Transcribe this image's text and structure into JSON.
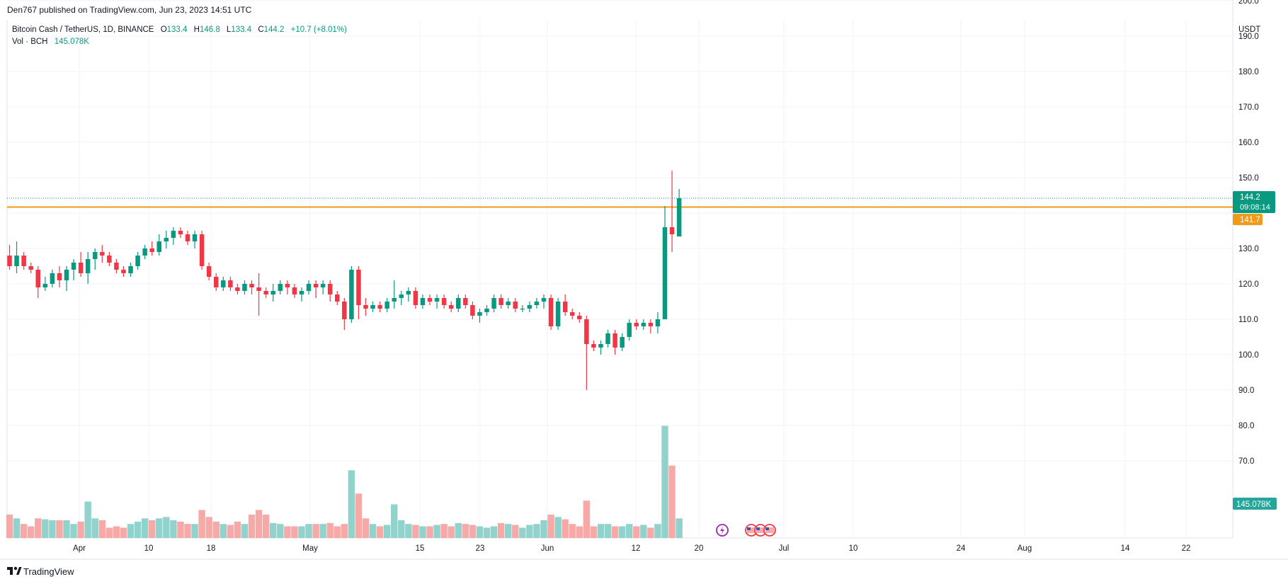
{
  "header": {
    "published": "Den767 published on TradingView.com, Jun 23, 2023 14:51 UTC"
  },
  "legend": {
    "symbol": "Bitcoin Cash / TetherUS, 1D, BINANCE",
    "open_label": "O",
    "open": "133.4",
    "high_label": "H",
    "high": "146.8",
    "low_label": "L",
    "low": "133.4",
    "close_label": "C",
    "close": "144.2",
    "change": "+10.7 (+8.01%)",
    "vol_label": "Vol · BCH",
    "vol_value": "145.078K"
  },
  "axis": {
    "currency": "USDT",
    "price_ticks": [
      "200.0",
      "190.0",
      "180.0",
      "170.0",
      "160.0",
      "150.0",
      "130.0",
      "120.0",
      "110.0",
      "100.0",
      "90.0",
      "80.0",
      "70.0"
    ],
    "price_tick_values": [
      200,
      190,
      180,
      170,
      160,
      150,
      130,
      120,
      110,
      100,
      90,
      80,
      70
    ],
    "date_ticks": [
      "Apr",
      "10",
      "18",
      "May",
      "15",
      "23",
      "Jun",
      "12",
      "20",
      "Jul",
      "10",
      "24",
      "Aug",
      "14",
      "22"
    ]
  },
  "badges": {
    "last_price": "144.2",
    "countdown": "09:08:14",
    "level_price": "141.7",
    "volume": "145.078K"
  },
  "footer": {
    "brand": "TradingView"
  },
  "colors": {
    "up": "#089981",
    "down": "#f23645",
    "vol_up": "#92d2cc",
    "vol_down": "#f7a9a7",
    "level": "#f09a1a",
    "grid": "#f0f3fa",
    "text": "#131722"
  },
  "chart_data": {
    "type": "candlestick",
    "title": "Bitcoin Cash / TetherUS, 1D, BINANCE",
    "ylabel": "USDT",
    "ylim": [
      65,
      210
    ],
    "horizontal_line": 141.7,
    "first_date": "2023-03-21",
    "candles": [
      [
        128,
        131,
        124,
        125,
        0.5
      ],
      [
        125,
        132,
        123,
        128,
        0.42
      ],
      [
        128,
        129,
        124,
        125,
        0.3
      ],
      [
        125,
        126,
        123,
        124,
        0.25
      ],
      [
        124,
        125,
        116,
        119,
        0.42
      ],
      [
        119,
        122,
        118,
        120,
        0.4
      ],
      [
        120,
        124,
        119,
        123,
        0.38
      ],
      [
        123,
        125,
        119,
        121,
        0.38
      ],
      [
        121,
        125,
        118,
        124,
        0.38
      ],
      [
        124,
        127,
        121,
        126,
        0.3
      ],
      [
        126,
        129,
        122,
        123,
        0.35
      ],
      [
        123,
        129,
        120,
        127,
        0.78
      ],
      [
        127,
        130,
        124,
        129,
        0.42
      ],
      [
        129,
        131,
        126,
        128,
        0.38
      ],
      [
        128,
        129,
        125,
        126,
        0.22
      ],
      [
        126,
        127,
        123,
        124,
        0.25
      ],
      [
        124,
        125,
        122,
        123,
        0.22
      ],
      [
        123,
        126,
        122,
        125,
        0.3
      ],
      [
        125,
        129,
        124,
        128,
        0.35
      ],
      [
        128,
        131,
        127,
        130,
        0.42
      ],
      [
        130,
        132,
        128,
        129,
        0.38
      ],
      [
        129,
        134,
        128,
        132,
        0.42
      ],
      [
        132,
        135,
        130,
        133,
        0.45
      ],
      [
        133,
        136,
        131,
        135,
        0.38
      ],
      [
        135,
        136,
        133,
        134,
        0.35
      ],
      [
        134,
        135,
        131,
        132,
        0.3
      ],
      [
        132,
        135,
        130,
        134,
        0.3
      ],
      [
        134,
        135,
        124,
        125,
        0.6
      ],
      [
        125,
        126,
        121,
        122,
        0.45
      ],
      [
        122,
        123,
        118,
        119,
        0.35
      ],
      [
        119,
        122,
        118,
        121,
        0.3
      ],
      [
        121,
        122,
        118,
        119,
        0.28
      ],
      [
        119,
        120,
        117,
        118,
        0.35
      ],
      [
        118,
        121,
        117,
        120,
        0.3
      ],
      [
        120,
        121,
        117,
        119,
        0.5
      ],
      [
        119,
        123,
        111,
        118,
        0.6
      ],
      [
        118,
        119,
        116,
        117,
        0.5
      ],
      [
        117,
        120,
        115,
        118,
        0.32
      ],
      [
        118,
        121,
        117,
        120,
        0.3
      ],
      [
        120,
        121,
        117,
        119,
        0.25
      ],
      [
        119,
        120,
        116,
        117,
        0.25
      ],
      [
        117,
        119,
        115,
        118,
        0.25
      ],
      [
        118,
        121,
        117,
        120,
        0.3
      ],
      [
        120,
        121,
        116,
        119,
        0.3
      ],
      [
        119,
        121,
        117,
        120,
        0.3
      ],
      [
        120,
        121,
        115,
        117,
        0.32
      ],
      [
        117,
        118,
        114,
        115,
        0.25
      ],
      [
        115,
        116,
        107,
        110,
        0.3
      ],
      [
        110,
        125,
        109,
        124,
        1.45
      ],
      [
        124,
        125,
        110,
        114,
        0.95
      ],
      [
        114,
        116,
        111,
        113,
        0.42
      ],
      [
        113,
        115,
        112,
        114,
        0.3
      ],
      [
        114,
        115,
        112,
        113,
        0.25
      ],
      [
        113,
        116,
        112,
        115,
        0.28
      ],
      [
        115,
        121,
        113,
        116,
        0.72
      ],
      [
        116,
        118,
        114,
        117,
        0.38
      ],
      [
        117,
        119,
        115,
        118,
        0.3
      ],
      [
        118,
        119,
        113,
        114,
        0.28
      ],
      [
        114,
        117,
        113,
        116,
        0.25
      ],
      [
        116,
        117,
        114,
        115,
        0.25
      ],
      [
        115,
        117,
        113,
        116,
        0.28
      ],
      [
        116,
        117,
        113,
        114,
        0.3
      ],
      [
        114,
        115,
        112,
        113,
        0.25
      ],
      [
        113,
        117,
        112,
        116,
        0.32
      ],
      [
        116,
        117,
        113,
        114,
        0.3
      ],
      [
        114,
        115,
        110,
        111,
        0.28
      ],
      [
        111,
        113,
        109,
        112,
        0.25
      ],
      [
        112,
        114,
        111,
        113,
        0.22
      ],
      [
        113,
        117,
        112,
        116,
        0.25
      ],
      [
        116,
        117,
        113,
        114,
        0.32
      ],
      [
        114,
        116,
        113,
        115,
        0.3
      ],
      [
        115,
        116,
        112,
        113,
        0.28
      ],
      [
        113,
        114,
        112,
        113,
        0.22
      ],
      [
        113,
        115,
        112,
        114,
        0.28
      ],
      [
        114,
        116,
        113,
        115,
        0.3
      ],
      [
        115,
        117,
        113,
        116,
        0.38
      ],
      [
        116,
        117,
        107,
        108,
        0.5
      ],
      [
        108,
        116,
        107,
        115,
        0.45
      ],
      [
        115,
        117,
        111,
        112,
        0.4
      ],
      [
        112,
        113,
        110,
        111,
        0.3
      ],
      [
        111,
        112,
        109,
        110,
        0.25
      ],
      [
        110,
        111,
        90,
        103,
        0.8
      ],
      [
        103,
        104,
        101,
        102,
        0.25
      ],
      [
        102,
        104,
        100,
        103,
        0.3
      ],
      [
        103,
        107,
        102,
        106,
        0.3
      ],
      [
        106,
        107,
        100,
        102,
        0.25
      ],
      [
        102,
        106,
        101,
        105,
        0.25
      ],
      [
        105,
        110,
        104,
        109,
        0.3
      ],
      [
        109,
        110,
        107,
        108,
        0.25
      ],
      [
        108,
        110,
        107,
        109,
        0.28
      ],
      [
        109,
        110,
        106,
        108,
        0.22
      ],
      [
        108,
        112,
        106,
        110,
        0.3
      ],
      [
        110,
        142,
        110,
        136,
        2.4
      ],
      [
        136,
        152,
        129,
        134,
        1.55
      ],
      [
        133.4,
        146.8,
        133.4,
        144.2,
        0.42
      ]
    ]
  }
}
